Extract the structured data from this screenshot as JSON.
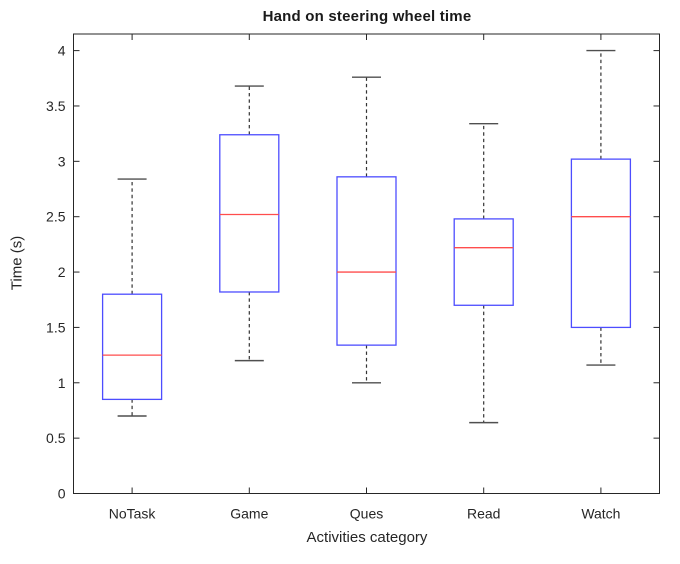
{
  "chart_data": {
    "type": "box",
    "title": "Hand on steering wheel time",
    "xlabel": "Activities category",
    "ylabel": "Time (s)",
    "categories": [
      "NoTask",
      "Game",
      "Ques",
      "Read",
      "Watch"
    ],
    "ylim": [
      0,
      4.15
    ],
    "yticks": [
      0,
      0.5,
      1,
      1.5,
      2,
      2.5,
      3,
      3.5,
      4
    ],
    "ytick_labels": [
      "0",
      "0.5",
      "1",
      "1.5",
      "2",
      "2.5",
      "3",
      "3.5",
      "4"
    ],
    "grid": "off",
    "series": [
      {
        "category": "NoTask",
        "whisker_low": 0.7,
        "q1": 0.85,
        "median": 1.25,
        "q3": 1.8,
        "whisker_high": 2.84
      },
      {
        "category": "Game",
        "whisker_low": 1.2,
        "q1": 1.82,
        "median": 2.52,
        "q3": 3.24,
        "whisker_high": 3.68
      },
      {
        "category": "Ques",
        "whisker_low": 1.0,
        "q1": 1.34,
        "median": 2.0,
        "q3": 2.86,
        "whisker_high": 3.76
      },
      {
        "category": "Read",
        "whisker_low": 0.64,
        "q1": 1.7,
        "median": 2.22,
        "q3": 2.48,
        "whisker_high": 3.34
      },
      {
        "category": "Watch",
        "whisker_low": 1.16,
        "q1": 1.5,
        "median": 2.5,
        "q3": 3.02,
        "whisker_high": 4.0
      }
    ],
    "colors": {
      "box": "#4d4dff",
      "median": "#ff4d4d",
      "whisker": "#333333",
      "cap": "#4f4f4f",
      "axis": "#262626",
      "text": "#262626",
      "background": "#ffffff"
    }
  }
}
